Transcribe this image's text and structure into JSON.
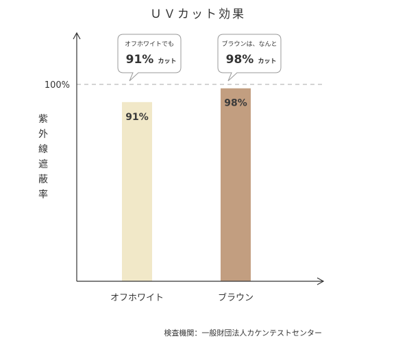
{
  "chart_data": {
    "type": "bar",
    "title": "ＵＶカット効果",
    "ylabel": "紫外線遮蔽率",
    "categories": [
      "オフホワイト",
      "ブラウン"
    ],
    "values": [
      91,
      98
    ],
    "value_labels": [
      "91%",
      "98%"
    ],
    "ylim": [
      0,
      100
    ],
    "yticks": [
      {
        "value": 100,
        "label": "100%"
      }
    ],
    "reference_line": {
      "value": 100,
      "style": "dashed"
    },
    "bar_colors": [
      "#f1e8c8",
      "#c29e80"
    ],
    "callouts": [
      {
        "small": "オフホワイトでも",
        "big": "91%",
        "suffix": "カット"
      },
      {
        "small": "ブラウンは、なんと",
        "big": "98%",
        "suffix": "カット"
      }
    ],
    "grid": false,
    "legend": "none"
  },
  "source": "検査機関：一般財団法人カケンテストセンター",
  "colors": {
    "axis": "#333333",
    "dashed": "#bbbbbb",
    "bubble_border": "#999999"
  }
}
